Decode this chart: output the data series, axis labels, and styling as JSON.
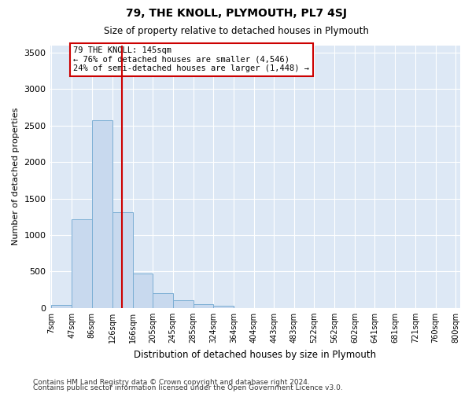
{
  "title": "79, THE KNOLL, PLYMOUTH, PL7 4SJ",
  "subtitle": "Size of property relative to detached houses in Plymouth",
  "xlabel": "Distribution of detached houses by size in Plymouth",
  "ylabel": "Number of detached properties",
  "bins": [
    "7sqm",
    "47sqm",
    "86sqm",
    "126sqm",
    "166sqm",
    "205sqm",
    "245sqm",
    "285sqm",
    "324sqm",
    "364sqm",
    "404sqm",
    "443sqm",
    "483sqm",
    "522sqm",
    "562sqm",
    "602sqm",
    "641sqm",
    "681sqm",
    "721sqm",
    "760sqm",
    "800sqm"
  ],
  "bin_edges": [
    7,
    47,
    86,
    126,
    166,
    205,
    245,
    285,
    324,
    364,
    404,
    443,
    483,
    522,
    562,
    602,
    641,
    681,
    721,
    760,
    800
  ],
  "values": [
    45,
    1210,
    2570,
    1310,
    470,
    200,
    110,
    50,
    30,
    0,
    0,
    0,
    0,
    0,
    0,
    0,
    0,
    0,
    0,
    0
  ],
  "bar_color": "#c8d9ee",
  "bar_edge_color": "#7baed4",
  "vline_x": 145,
  "vline_color": "#cc0000",
  "annotation_text": "79 THE KNOLL: 145sqm\n← 76% of detached houses are smaller (4,546)\n24% of semi-detached houses are larger (1,448) →",
  "annotation_box_color": "#ffffff",
  "annotation_box_edge": "#cc0000",
  "ylim": [
    0,
    3600
  ],
  "yticks": [
    0,
    500,
    1000,
    1500,
    2000,
    2500,
    3000,
    3500
  ],
  "bg_color": "#dde8f5",
  "footer1": "Contains HM Land Registry data © Crown copyright and database right 2024.",
  "footer2": "Contains public sector information licensed under the Open Government Licence v3.0."
}
